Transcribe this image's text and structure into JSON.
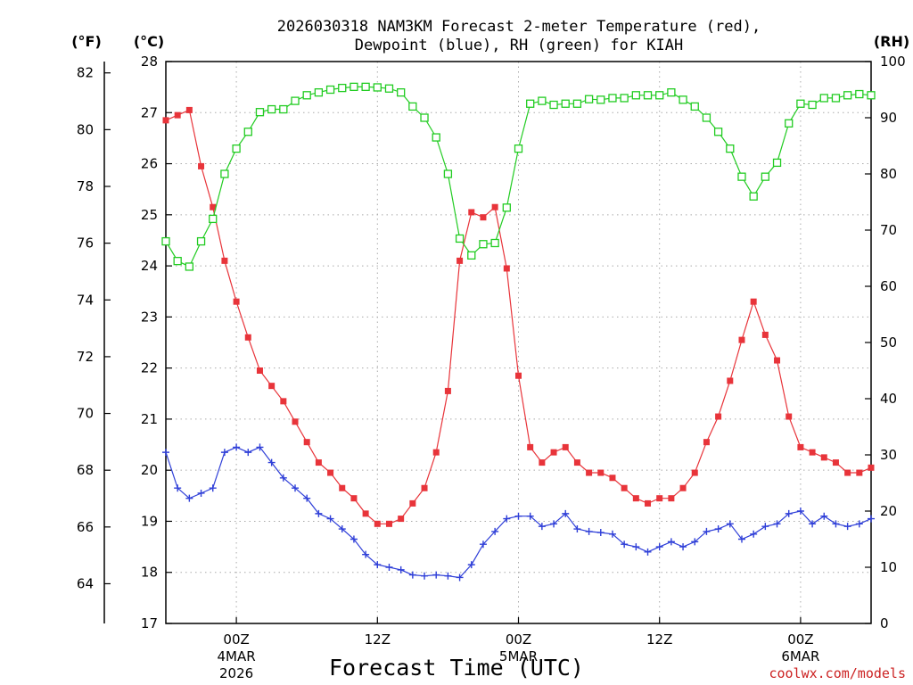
{
  "chart_data": {
    "type": "line",
    "title_line1": "2026030318 NAM3KM Forecast 2-meter Temperature (red),",
    "title_line2": "Dewpoint (blue), RH (green) for KIAH",
    "xlabel": "Forecast Time (UTC)",
    "credit": "coolwx.com/models",
    "units": {
      "fahrenheit": "(°F)",
      "celsius": "(°C)",
      "rh": "(RH)"
    },
    "hours_range": [
      0,
      60
    ],
    "x_ticks": [
      {
        "hour": 6,
        "label": "00Z",
        "sub1": "4MAR",
        "sub2": "2026"
      },
      {
        "hour": 18,
        "label": "12Z",
        "sub1": "",
        "sub2": ""
      },
      {
        "hour": 30,
        "label": "00Z",
        "sub1": "5MAR",
        "sub2": ""
      },
      {
        "hour": 42,
        "label": "12Z",
        "sub1": "",
        "sub2": ""
      },
      {
        "hour": 54,
        "label": "00Z",
        "sub1": "6MAR",
        "sub2": ""
      }
    ],
    "celsius_axis": {
      "range": [
        17,
        28
      ],
      "ticks": [
        "17",
        "18",
        "19",
        "20",
        "21",
        "22",
        "23",
        "24",
        "25",
        "26",
        "27",
        "28"
      ]
    },
    "fahrenheit_axis": {
      "range": [
        62.6,
        82.4
      ],
      "ticks": [
        "64",
        "66",
        "68",
        "70",
        "72",
        "74",
        "76",
        "78",
        "80",
        "82"
      ]
    },
    "rh_axis": {
      "range": [
        0,
        100
      ],
      "ticks": [
        "0",
        "10",
        "20",
        "30",
        "40",
        "50",
        "60",
        "70",
        "80",
        "90",
        "100"
      ]
    },
    "colors": {
      "temperature": "#e8343a",
      "dewpoint": "#2f3fd8",
      "rh": "#22cc22",
      "grid": "#aaaaaa"
    },
    "series": [
      {
        "name": "2-meter Temperature",
        "unit": "C",
        "start_hour": 0,
        "step_hours": 1,
        "values": [
          26.85,
          26.95,
          27.05,
          25.95,
          25.15,
          24.1,
          23.3,
          22.6,
          21.95,
          21.65,
          21.35,
          20.95,
          20.55,
          20.15,
          19.95,
          19.65,
          19.45,
          19.15,
          18.95,
          18.95,
          19.05,
          19.35,
          19.65,
          20.35,
          21.55,
          24.1,
          25.05,
          24.95,
          25.15,
          23.95,
          21.85,
          20.45,
          20.15,
          20.35,
          20.45,
          20.15,
          19.95,
          19.95,
          19.85,
          19.65,
          19.45,
          19.35,
          19.45,
          19.45,
          19.65,
          19.95,
          20.55,
          21.05,
          21.75,
          22.55,
          23.3,
          22.65,
          22.15,
          21.05,
          20.45,
          20.35,
          20.25,
          20.15,
          19.95,
          19.95,
          20.05
        ]
      },
      {
        "name": "Dewpoint",
        "unit": "C",
        "start_hour": 0,
        "step_hours": 1,
        "values": [
          20.35,
          19.65,
          19.45,
          19.55,
          19.65,
          20.35,
          20.45,
          20.35,
          20.45,
          20.15,
          19.85,
          19.65,
          19.45,
          19.15,
          19.05,
          18.85,
          18.65,
          18.35,
          18.15,
          18.1,
          18.05,
          17.95,
          17.93,
          17.95,
          17.93,
          17.9,
          18.15,
          18.55,
          18.8,
          19.05,
          19.1,
          19.1,
          18.9,
          18.95,
          19.15,
          18.85,
          18.8,
          18.78,
          18.75,
          18.55,
          18.5,
          18.4,
          18.5,
          18.6,
          18.5,
          18.6,
          18.8,
          18.85,
          18.95,
          18.65,
          18.75,
          18.9,
          18.95,
          19.15,
          19.2,
          18.95,
          19.1,
          18.95,
          18.9,
          18.95,
          19.05
        ]
      },
      {
        "name": "Relative Humidity",
        "unit": "%",
        "start_hour": 0,
        "step_hours": 1,
        "values": [
          68,
          64.5,
          63.5,
          68,
          72,
          80,
          84.5,
          87.5,
          91,
          91.5,
          91.5,
          93,
          94,
          94.5,
          95,
          95.3,
          95.5,
          95.5,
          95.4,
          95.2,
          94.5,
          92,
          90,
          86.5,
          80,
          68.5,
          65.5,
          67.5,
          67.7,
          74,
          84.5,
          92.5,
          93,
          92.3,
          92.5,
          92.5,
          93.3,
          93.2,
          93.5,
          93.5,
          94,
          94,
          94,
          94.5,
          93.2,
          92,
          90,
          87.5,
          84.5,
          79.5,
          76,
          79.5,
          82,
          89,
          92.5,
          92.3,
          93.5,
          93.5,
          94,
          94.2,
          94
        ]
      }
    ]
  }
}
